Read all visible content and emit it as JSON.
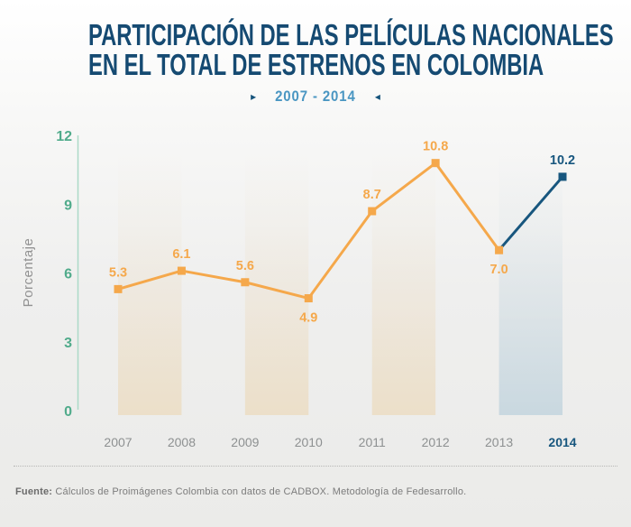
{
  "title": {
    "line1": "PARTICIPACIÓN DE LAS PELÍCULAS NACIONALES",
    "line2": "EN EL TOTAL DE ESTRENOS EN COLOMBIA"
  },
  "subtitle": {
    "left_arrow": "▸",
    "range": "2007 - 2014",
    "right_arrow": "◂"
  },
  "chart_data": {
    "type": "line",
    "categories": [
      "2007",
      "2008",
      "2009",
      "2010",
      "2011",
      "2012",
      "2013",
      "2014"
    ],
    "values": [
      5.3,
      6.1,
      5.6,
      4.9,
      8.7,
      10.8,
      7.0,
      10.2
    ],
    "value_labels": [
      "5.3",
      "6.1",
      "5.6",
      "4.9",
      "8.7",
      "10.8",
      "7.0",
      "10.2"
    ],
    "label_placement": [
      "above",
      "above",
      "above",
      "below",
      "above",
      "above",
      "below",
      "above"
    ],
    "ylabel": "Porcentaje",
    "yticks": [
      0,
      3,
      6,
      9,
      12
    ],
    "ylim": [
      0,
      12
    ],
    "grid": false,
    "legend": "none",
    "highlight_year": "2014",
    "highlight_segment_from": "2013",
    "bands": [
      {
        "from": "2007",
        "to": "2008",
        "color": "#ecdfc9"
      },
      {
        "from": "2009",
        "to": "2010",
        "color": "#ecdfc9"
      },
      {
        "from": "2011",
        "to": "2012",
        "color": "#ecdfc9"
      },
      {
        "from": "2013",
        "to": "2014",
        "color": "#c9d8e0"
      }
    ],
    "colors": {
      "line_orange": "#f5a84b",
      "line_blue": "#17567e",
      "tick_teal": "#50ab8b",
      "axis_line": "#abd9c7",
      "year_gray": "#8d9091",
      "ylabel_gray": "#929292"
    }
  },
  "footer": {
    "source_label": "Fuente:",
    "source_text": " Cálculos de Proimágenes Colombia con datos de CADBOX. Metodología de Fedesarrollo."
  }
}
